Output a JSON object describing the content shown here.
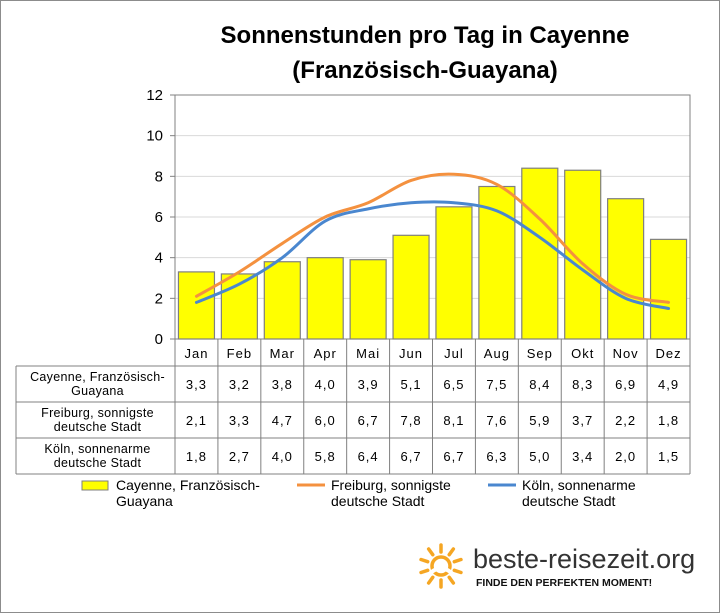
{
  "chart_data": {
    "type": "bar",
    "title_lines": [
      "Sonnenstunden pro Tag in Cayenne",
      "(Französisch-Guayana)"
    ],
    "categories": [
      "Jan",
      "Feb",
      "Mar",
      "Apr",
      "Mai",
      "Jun",
      "Jul",
      "Aug",
      "Sep",
      "Okt",
      "Nov",
      "Dez"
    ],
    "ylim": [
      0,
      12
    ],
    "yticks": [
      "0",
      "2",
      "4",
      "6",
      "8",
      "10",
      "12"
    ],
    "grid": true,
    "legend_position": "bottom",
    "series": [
      {
        "name": "Cayenne, Französisch-Guayana",
        "name_lines": [
          "Cayenne, Französisch-",
          "Guayana"
        ],
        "type": "bar",
        "color": "#ffff00",
        "values": [
          3.3,
          3.2,
          3.8,
          4.0,
          3.9,
          5.1,
          6.5,
          7.5,
          8.4,
          8.3,
          6.9,
          4.9
        ],
        "value_labels": [
          "3,3",
          "3,2",
          "3,8",
          "4,0",
          "3,9",
          "5,1",
          "6,5",
          "7,5",
          "8,4",
          "8,3",
          "6,9",
          "4,9"
        ]
      },
      {
        "name": "Freiburg, sonnigste deutsche Stadt",
        "name_lines": [
          "Freiburg, sonnigste",
          "deutsche Stadt"
        ],
        "type": "line",
        "color": "#f4913f",
        "values": [
          2.1,
          3.3,
          4.7,
          6.0,
          6.7,
          7.8,
          8.1,
          7.6,
          5.9,
          3.7,
          2.2,
          1.8
        ],
        "value_labels": [
          "2,1",
          "3,3",
          "4,7",
          "6,0",
          "6,7",
          "7,8",
          "8,1",
          "7,6",
          "5,9",
          "3,7",
          "2,2",
          "1,8"
        ]
      },
      {
        "name": "Köln, sonnenarme deutsche Stadt",
        "name_lines": [
          "Köln, sonnenarme",
          "deutsche Stadt"
        ],
        "type": "line",
        "color": "#4a87cf",
        "values": [
          1.8,
          2.7,
          4.0,
          5.8,
          6.4,
          6.7,
          6.7,
          6.3,
          5.0,
          3.4,
          2.0,
          1.5
        ],
        "value_labels": [
          "1,8",
          "2,7",
          "4,0",
          "5,8",
          "6,4",
          "6,7",
          "6,7",
          "6,3",
          "5,0",
          "3,4",
          "2,0",
          "1,5"
        ]
      }
    ]
  },
  "table": {
    "row_labels": [
      [
        "Cayenne, Französisch-",
        "Guayana"
      ],
      [
        "Freiburg, sonnigste",
        "deutsche Stadt"
      ],
      [
        "Köln, sonnenarme",
        "deutsche Stadt"
      ]
    ]
  },
  "logo": {
    "name": "beste-reisezeit.org",
    "tagline": "FINDE DEN PERFEKTEN MOMENT!",
    "color": "#f5a623"
  }
}
